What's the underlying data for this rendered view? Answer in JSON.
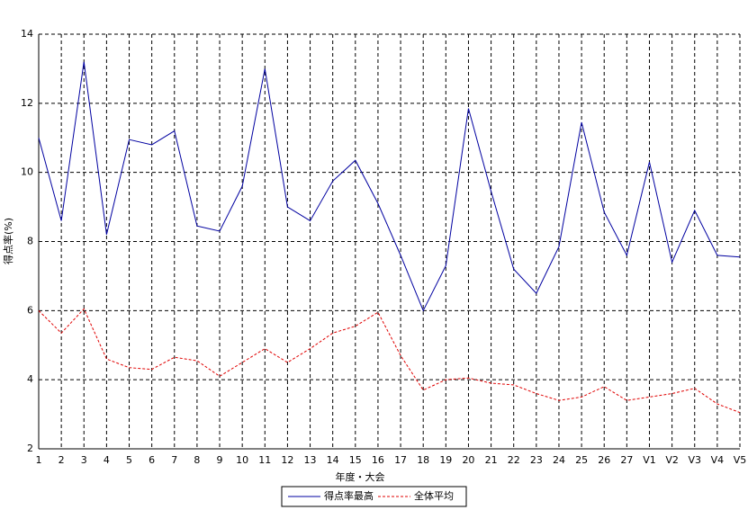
{
  "chart_data": {
    "type": "line",
    "x_label": "年度・大会",
    "y_label": "得点率(%)",
    "categories": [
      "1",
      "2",
      "3",
      "4",
      "5",
      "6",
      "7",
      "8",
      "9",
      "10",
      "11",
      "12",
      "13",
      "14",
      "15",
      "16",
      "17",
      "18",
      "19",
      "20",
      "21",
      "22",
      "23",
      "24",
      "25",
      "26",
      "27",
      "V1",
      "V2",
      "V3",
      "V4",
      "V5"
    ],
    "series": [
      {
        "name": "得点率最高",
        "color": "#0000a0",
        "dashed": false,
        "values": [
          11.0,
          8.6,
          13.2,
          8.2,
          10.95,
          10.8,
          11.2,
          8.45,
          8.3,
          9.6,
          13.0,
          9.0,
          8.6,
          9.75,
          10.35,
          9.1,
          7.6,
          6.0,
          7.3,
          11.85,
          9.45,
          7.2,
          6.5,
          7.85,
          11.45,
          8.85,
          7.6,
          10.3,
          7.4,
          8.9,
          7.6,
          7.55
        ]
      },
      {
        "name": "全体平均",
        "color": "#e00000",
        "dashed": true,
        "values": [
          6.0,
          5.35,
          6.05,
          4.6,
          4.35,
          4.3,
          4.65,
          4.55,
          4.1,
          4.5,
          4.9,
          4.5,
          4.9,
          5.35,
          5.55,
          5.95,
          4.7,
          3.7,
          4.0,
          4.05,
          3.9,
          3.85,
          3.6,
          3.4,
          3.5,
          3.8,
          3.4,
          3.5,
          3.6,
          3.75,
          3.3,
          3.05
        ]
      }
    ],
    "ylim": [
      2,
      14
    ],
    "yticks": [
      2,
      4,
      6,
      8,
      10,
      12,
      14
    ],
    "grid": true,
    "legend": "bottom"
  }
}
